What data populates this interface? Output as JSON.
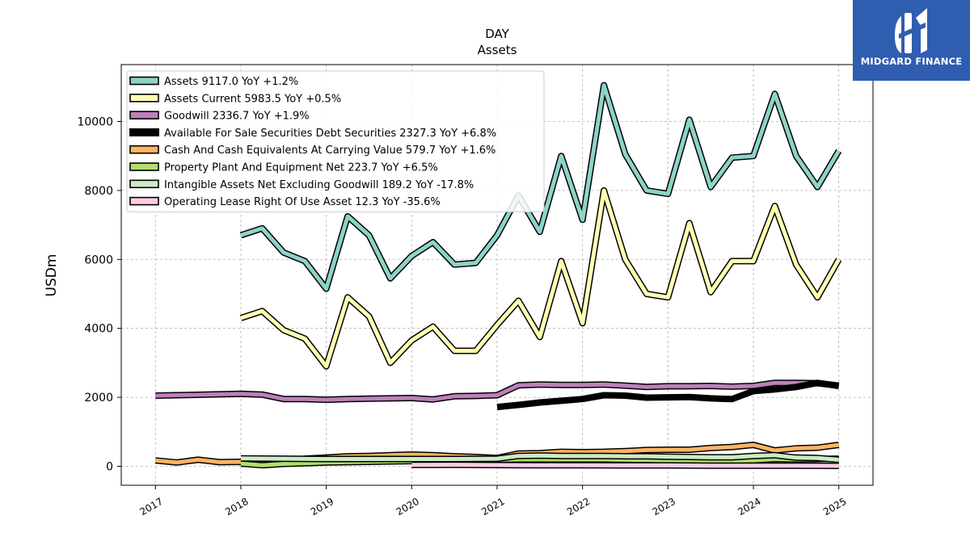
{
  "brand": {
    "name": "MIDGARD FINANCE",
    "background": "#2f5db0"
  },
  "chart_data": {
    "type": "line",
    "title": "DAY",
    "subtitle": "Assets",
    "xlabel": "",
    "ylabel": "USDm",
    "xlim": [
      2016.6,
      2025.4
    ],
    "ylim": [
      -550,
      11650
    ],
    "x_ticks": [
      "2017",
      "2018",
      "2019",
      "2020",
      "2021",
      "2022",
      "2023",
      "2024",
      "2025"
    ],
    "y_ticks": [
      0,
      2000,
      4000,
      6000,
      8000,
      10000
    ],
    "grid": true,
    "legend_position": "top-left",
    "series": [
      {
        "name": "Assets  9117.0 YoY +1.2%",
        "color": "#8dd3c7",
        "width": 5,
        "x": [
          2018.0,
          2018.25,
          2018.5,
          2018.75,
          2019.0,
          2019.25,
          2019.5,
          2019.75,
          2020.0,
          2020.25,
          2020.5,
          2020.75,
          2021.0,
          2021.25,
          2021.5,
          2021.75,
          2022.0,
          2022.25,
          2022.5,
          2022.75,
          2023.0,
          2023.25,
          2023.5,
          2023.75,
          2024.0,
          2024.25,
          2024.5,
          2024.75,
          2025.0
        ],
        "y": [
          6700,
          6900,
          6200,
          5950,
          5150,
          7250,
          6700,
          5450,
          6100,
          6500,
          5850,
          5900,
          6700,
          7850,
          6800,
          9000,
          7150,
          11050,
          9050,
          8000,
          7900,
          10050,
          8100,
          8950,
          9000,
          10800,
          9000,
          8100,
          9150
        ]
      },
      {
        "name": "Assets Current  5983.5 YoY +0.5%",
        "color": "#ffffb3",
        "width": 5,
        "x": [
          2018.0,
          2018.25,
          2018.5,
          2018.75,
          2019.0,
          2019.25,
          2019.5,
          2019.75,
          2020.0,
          2020.25,
          2020.5,
          2020.75,
          2021.0,
          2021.25,
          2021.5,
          2021.75,
          2022.0,
          2022.25,
          2022.5,
          2022.75,
          2023.0,
          2023.25,
          2023.5,
          2023.75,
          2024.0,
          2024.25,
          2024.5,
          2024.75,
          2025.0
        ],
        "y": [
          4300,
          4500,
          3950,
          3700,
          2900,
          4900,
          4350,
          3000,
          3650,
          4050,
          3350,
          3350,
          4100,
          4800,
          3750,
          5950,
          4150,
          8000,
          6000,
          5000,
          4900,
          7050,
          5050,
          5950,
          5950,
          7550,
          5850,
          4900,
          6000
        ]
      },
      {
        "name": "Goodwill  2336.7 YoY +1.9%",
        "color": "#bc80bd",
        "width": 5,
        "x": [
          2017.0,
          2018.0,
          2018.25,
          2018.5,
          2018.75,
          2019.0,
          2019.25,
          2019.5,
          2019.75,
          2020.0,
          2020.25,
          2020.5,
          2020.75,
          2021.0,
          2021.25,
          2021.5,
          2021.75,
          2022.0,
          2022.25,
          2022.5,
          2022.75,
          2023.0,
          2023.25,
          2023.5,
          2023.75,
          2024.0,
          2024.25,
          2024.5,
          2024.75,
          2025.0
        ],
        "y": [
          2050,
          2100,
          2080,
          1950,
          1950,
          1930,
          1950,
          1960,
          1970,
          1980,
          1940,
          2030,
          2040,
          2060,
          2350,
          2370,
          2360,
          2360,
          2370,
          2340,
          2300,
          2320,
          2320,
          2330,
          2310,
          2330,
          2420,
          2420,
          2410,
          2340
        ]
      },
      {
        "name": "Available For Sale Securities Debt Securities  2327.3 YoY +6.8%",
        "color": "#000000",
        "width": 8,
        "x": [
          2021.0,
          2021.25,
          2021.5,
          2021.75,
          2022.0,
          2022.25,
          2022.5,
          2022.75,
          2023.0,
          2023.25,
          2023.5,
          2023.75,
          2024.0,
          2024.25,
          2024.5,
          2024.75,
          2025.0
        ],
        "y": [
          1720,
          1780,
          1850,
          1900,
          1950,
          2060,
          2050,
          1990,
          2000,
          2010,
          1970,
          1950,
          2180,
          2230,
          2300,
          2420,
          2330
        ]
      },
      {
        "name": "Cash And Cash Equivalents At Carrying Value  579.7 YoY +1.6%",
        "color": "#fdb462",
        "width": 5,
        "x": [
          2017.0,
          2017.25,
          2017.5,
          2017.75,
          2018.0,
          2018.25,
          2018.5,
          2018.75,
          2019.0,
          2019.25,
          2019.5,
          2019.75,
          2020.0,
          2020.25,
          2020.5,
          2020.75,
          2021.0,
          2021.25,
          2021.5,
          2021.75,
          2022.0,
          2022.25,
          2022.5,
          2022.75,
          2023.0,
          2023.25,
          2023.5,
          2023.75,
          2024.0,
          2024.25,
          2024.5,
          2024.75,
          2025.0
        ],
        "y": [
          170,
          110,
          190,
          120,
          130,
          90,
          150,
          220,
          250,
          290,
          300,
          320,
          340,
          320,
          290,
          270,
          240,
          370,
          380,
          420,
          410,
          420,
          440,
          470,
          480,
          480,
          530,
          560,
          620,
          460,
          520,
          540,
          620
        ]
      },
      {
        "name": "Property Plant And Equipment Net  223.7 YoY +6.5%",
        "color": "#b3de69",
        "width": 5,
        "x": [
          2018.0,
          2018.25,
          2018.5,
          2018.75,
          2019.0,
          2019.25,
          2019.5,
          2019.75,
          2020.0,
          2020.25,
          2020.5,
          2020.75,
          2021.0,
          2021.25,
          2021.5,
          2021.75,
          2022.0,
          2022.25,
          2022.5,
          2022.75,
          2023.0,
          2023.25,
          2023.5,
          2023.75,
          2024.0,
          2024.25,
          2024.5,
          2024.75,
          2025.0
        ],
        "y": [
          80,
          30,
          70,
          90,
          110,
          120,
          130,
          140,
          150,
          160,
          170,
          180,
          190,
          200,
          200,
          200,
          200,
          200,
          190,
          180,
          170,
          170,
          160,
          160,
          170,
          210,
          200,
          210,
          220
        ]
      },
      {
        "name": "Intangible Assets Net Excluding Goodwill  189.2 YoY -17.8%",
        "color": "#ccebc5",
        "width": 5,
        "x": [
          2018.0,
          2018.5,
          2019.0,
          2019.5,
          2020.0,
          2020.5,
          2021.0,
          2021.25,
          2021.5,
          2021.75,
          2022.0,
          2022.25,
          2022.5,
          2022.75,
          2023.0,
          2023.25,
          2023.5,
          2023.75,
          2024.0,
          2024.25,
          2024.5,
          2024.75,
          2025.0
        ],
        "y": [
          230,
          220,
          210,
          210,
          210,
          210,
          220,
          300,
          310,
          300,
          300,
          300,
          290,
          290,
          280,
          270,
          260,
          260,
          300,
          320,
          250,
          240,
          190
        ]
      },
      {
        "name": "Operating Lease Right Of Use Asset  12.3 YoY -35.6%",
        "color": "#fccde5",
        "width": 5,
        "x": [
          2020.0,
          2020.5,
          2021.0,
          2021.5,
          2022.0,
          2022.5,
          2023.0,
          2023.5,
          2024.0,
          2024.5,
          2025.0
        ],
        "y": [
          40,
          45,
          35,
          30,
          30,
          25,
          25,
          20,
          20,
          18,
          12
        ]
      }
    ]
  }
}
